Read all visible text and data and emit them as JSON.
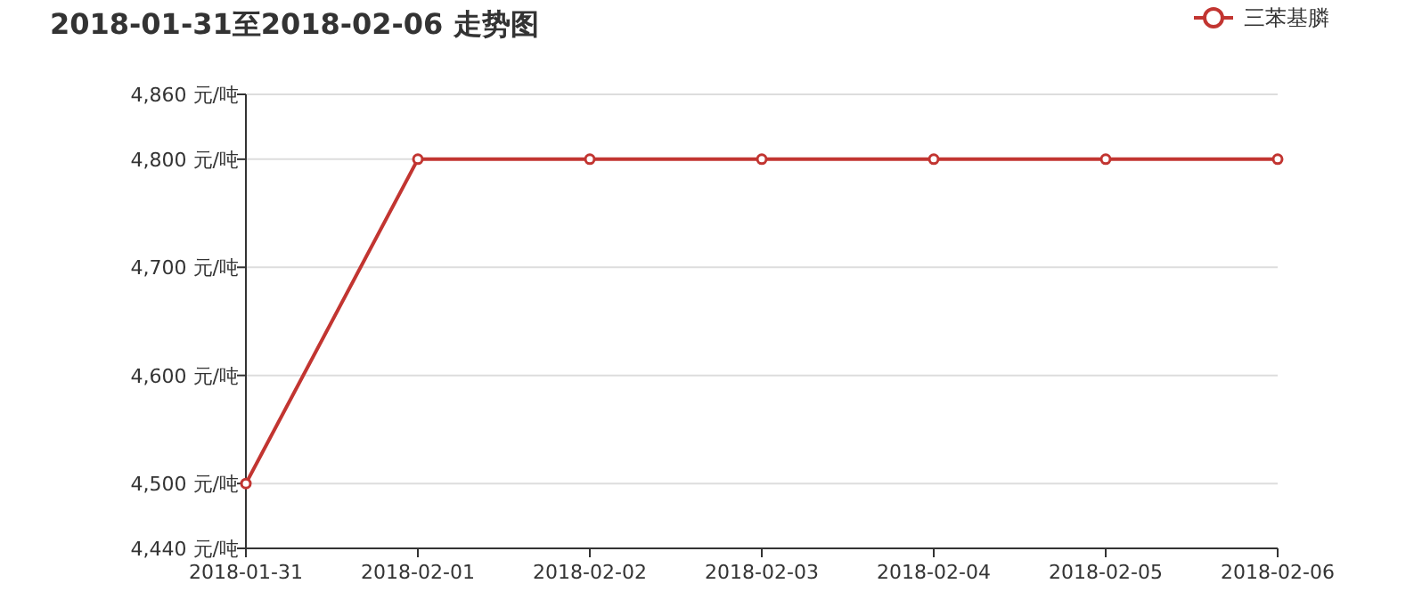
{
  "chart_data": {
    "type": "line",
    "title": "2018-01-31至2018-02-06 走势图",
    "categories": [
      "2018-01-31",
      "2018-02-01",
      "2018-02-02",
      "2018-02-03",
      "2018-02-04",
      "2018-02-05",
      "2018-02-06"
    ],
    "series": [
      {
        "name": "三苯基膦",
        "color": "#c23531",
        "values": [
          4500,
          4800,
          4800,
          4800,
          4800,
          4800,
          4800
        ]
      }
    ],
    "ylim": [
      4440,
      4860
    ],
    "yticks": [
      {
        "value": 4440,
        "label": "4,440 元/吨"
      },
      {
        "value": 4500,
        "label": "4,500 元/吨"
      },
      {
        "value": 4600,
        "label": "4,600 元/吨"
      },
      {
        "value": 4700,
        "label": "4,700 元/吨"
      },
      {
        "value": 4800,
        "label": "4,800 元/吨"
      },
      {
        "value": 4860,
        "label": "4,860 元/吨"
      }
    ],
    "grid": "y",
    "legend": "top right",
    "marker": "circle",
    "line_style": "solid"
  }
}
